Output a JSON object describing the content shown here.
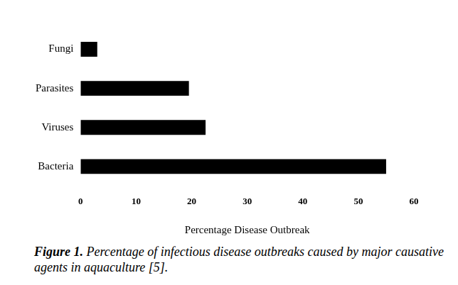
{
  "chart_data": {
    "type": "bar",
    "orientation": "horizontal",
    "title": "Figure 1. Percentage of infectious disease outbreaks caused by major causative agents in aquaculture [5].",
    "x_label": "Percentage Disease Outbreak",
    "categories": [
      "Fungi",
      "Parasites",
      "Viruses",
      "Bacteria"
    ],
    "values": [
      3,
      19.5,
      22.5,
      55
    ],
    "color": "#000000",
    "xlim": [
      0,
      60
    ],
    "xticks": [
      0,
      10,
      20,
      30,
      40,
      50,
      60
    ],
    "grid": false
  }
}
